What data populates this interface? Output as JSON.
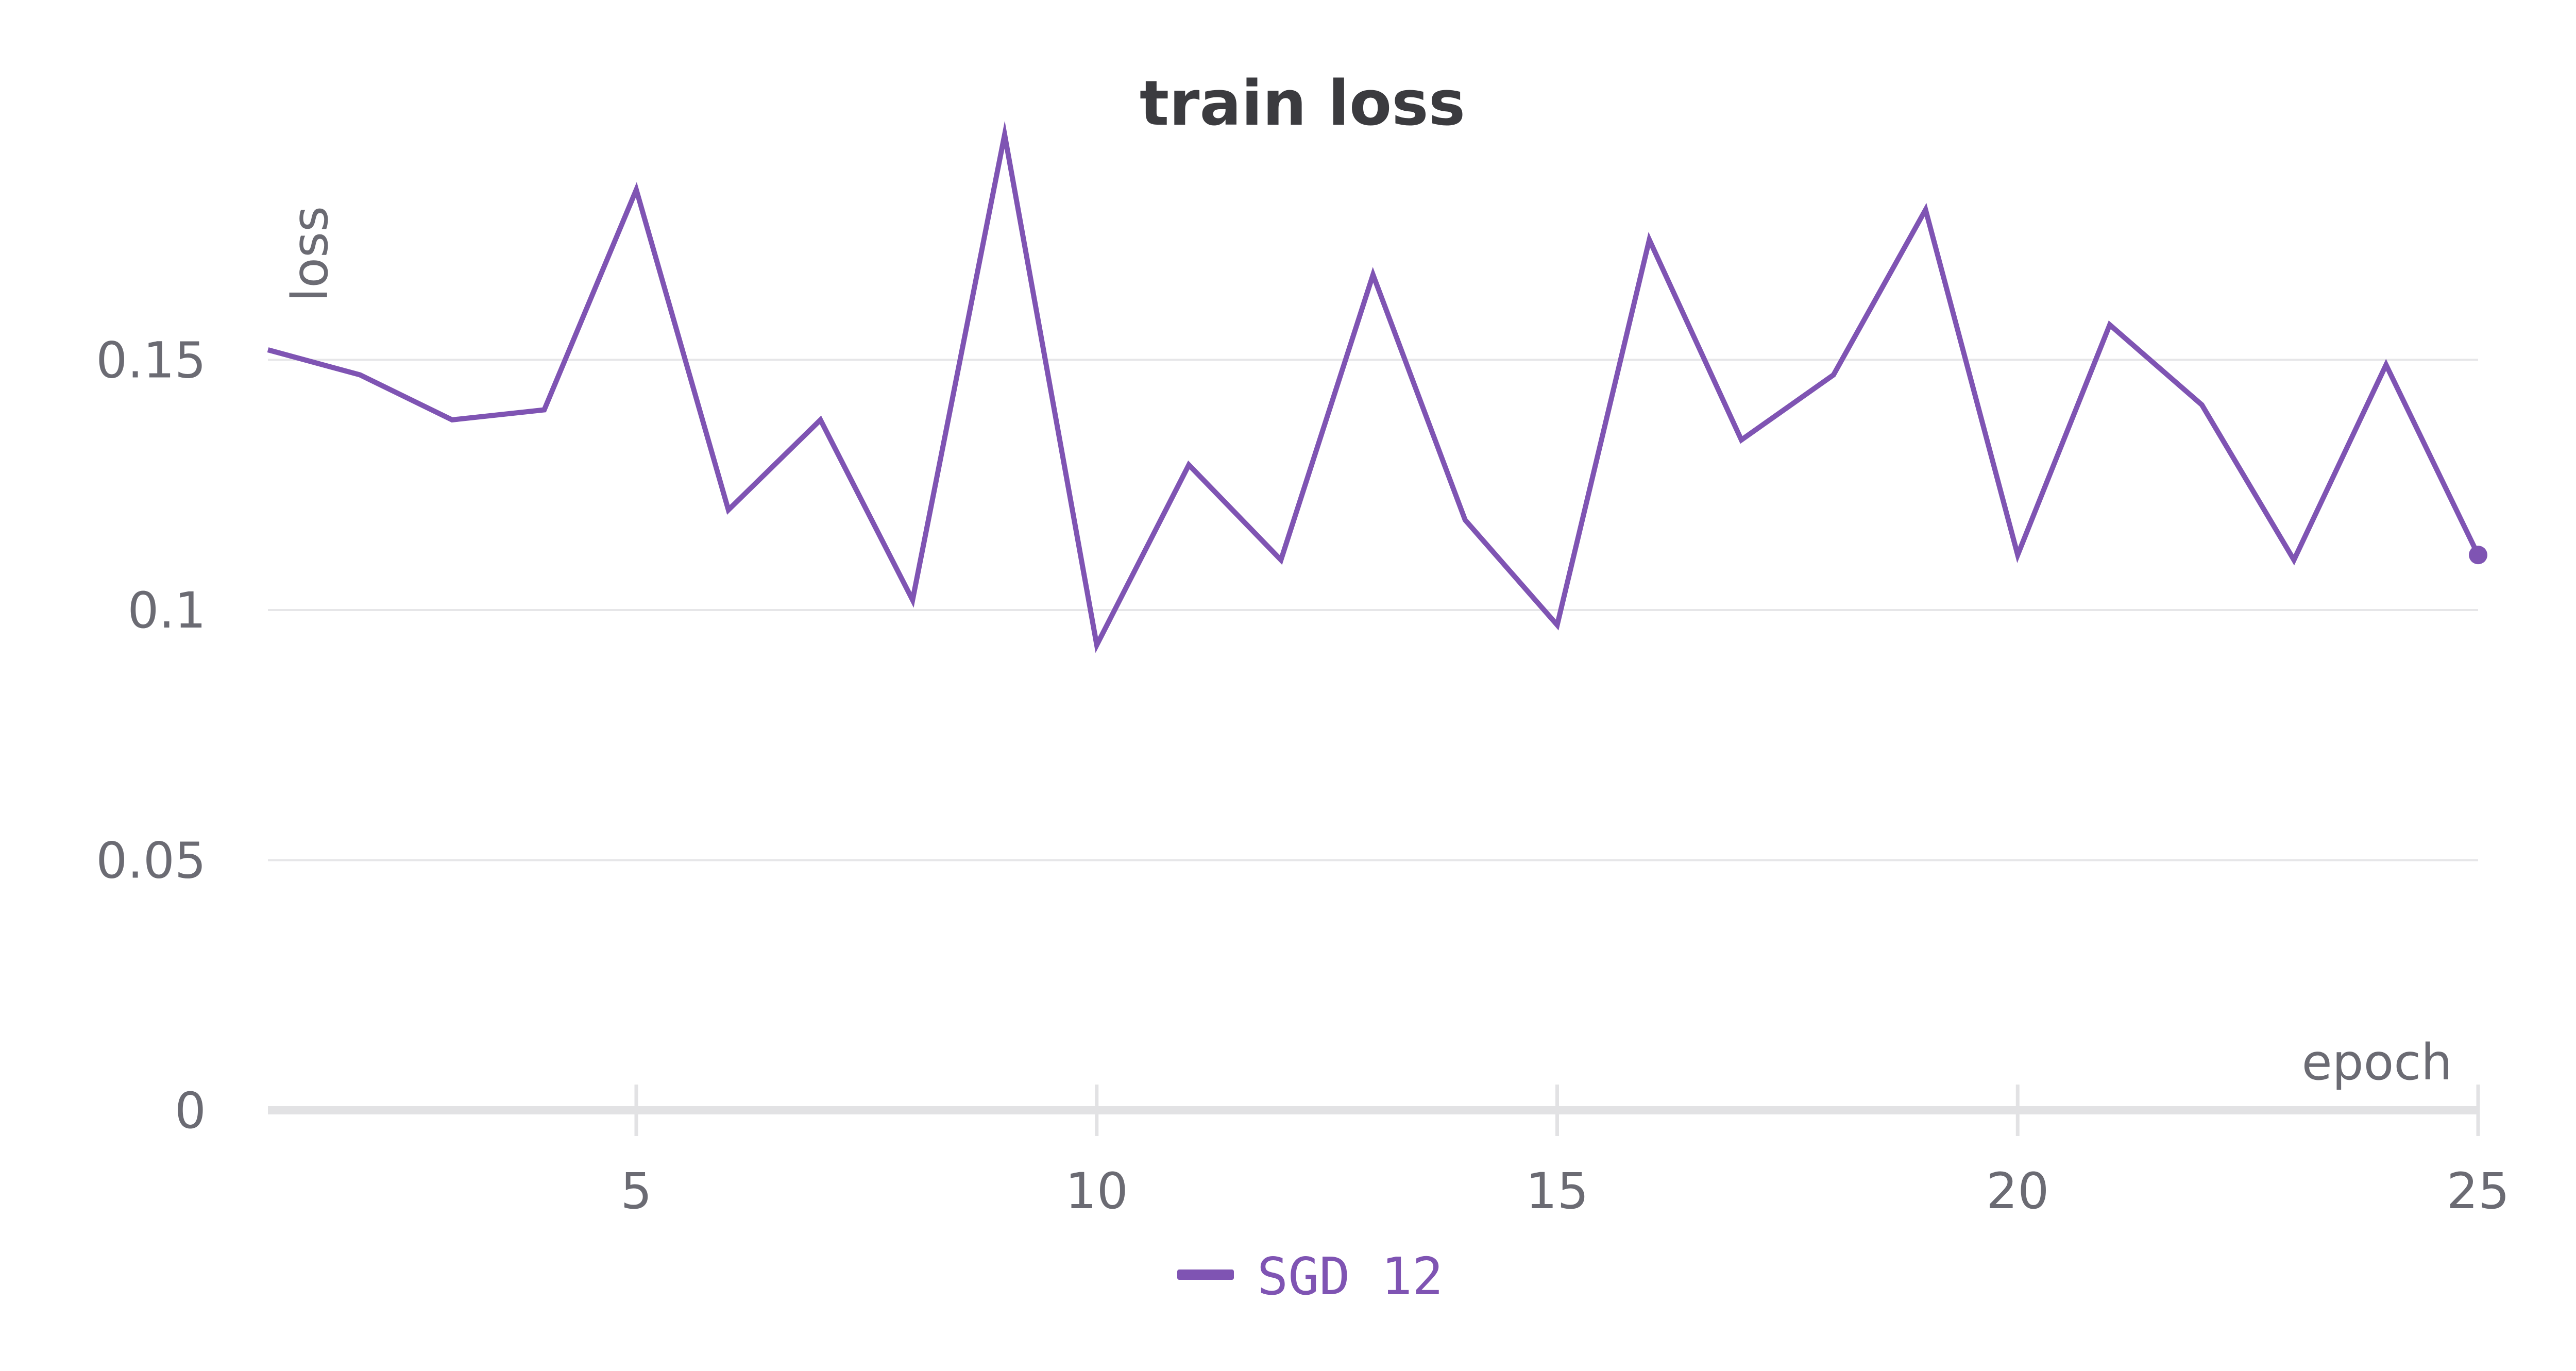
{
  "chart_data": {
    "type": "line",
    "title": "train loss",
    "xlabel": "epoch",
    "ylabel": "loss",
    "xlim": [
      1,
      25
    ],
    "ylim": [
      0,
      0.19
    ],
    "grid": true,
    "legend_position": "bottom-center",
    "x_ticks": [
      {
        "value": 5,
        "label": "5"
      },
      {
        "value": 10,
        "label": "10"
      },
      {
        "value": 15,
        "label": "15"
      },
      {
        "value": 20,
        "label": "20"
      },
      {
        "value": 25,
        "label": "25"
      }
    ],
    "y_ticks": [
      {
        "value": 0,
        "label": "0"
      },
      {
        "value": 0.05,
        "label": "0.05"
      },
      {
        "value": 0.1,
        "label": "0.1"
      },
      {
        "value": 0.15,
        "label": "0.15"
      }
    ],
    "series": [
      {
        "name": "SGD 12",
        "color": "#7f54b3",
        "x": [
          1,
          2,
          3,
          4,
          5,
          6,
          7,
          8,
          9,
          10,
          11,
          12,
          13,
          14,
          15,
          16,
          17,
          18,
          19,
          20,
          21,
          22,
          23,
          24,
          25
        ],
        "y": [
          0.152,
          0.147,
          0.138,
          0.14,
          0.184,
          0.12,
          0.138,
          0.102,
          0.195,
          0.093,
          0.129,
          0.11,
          0.167,
          0.118,
          0.097,
          0.174,
          0.134,
          0.147,
          0.18,
          0.111,
          0.157,
          0.141,
          0.11,
          0.149,
          0.111
        ]
      }
    ]
  },
  "colors": {
    "line": "#7f54b3",
    "title": "#3b3b3f",
    "axis_text": "#6b6b73",
    "grid": "#e6e6e8",
    "axis": "#e2e2e4"
  }
}
